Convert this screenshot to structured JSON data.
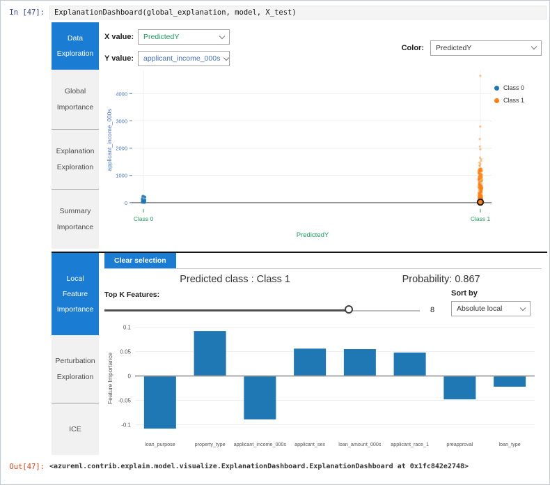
{
  "colors": {
    "accent_blue": "#1b7cd4",
    "axis_blue": "#4472c4",
    "axis_green": "#1f9d5b",
    "class0": "#1f77b4",
    "class1": "#ff7f0e",
    "bar_blue": "#1f77b4"
  },
  "notebook": {
    "in_prompt": "In [47]:",
    "in_code": "ExplanationDashboard(global_explanation, model, X_test)",
    "out_prompt": "Out[47]:",
    "out_text": "<azureml.contrib.explain.model.visualize.ExplanationDashboard.ExplanationDashboard at 0x1fc842e2748>"
  },
  "upper": {
    "tabs": [
      {
        "label": "Data Exploration",
        "active": true
      },
      {
        "label": "Global Importance",
        "active": false
      },
      {
        "label": "Explanation Exploration",
        "active": false
      },
      {
        "label": "Summary Importance",
        "active": false
      }
    ],
    "controls": {
      "x_label": "X value:",
      "x_value": "PredictedY",
      "y_label": "Y value:",
      "y_value": "applicant_income_000s",
      "color_label": "Color:",
      "color_value": "PredictedY"
    }
  },
  "lower": {
    "tabs": [
      {
        "label": "Local Feature Importance",
        "active": true
      },
      {
        "label": "Perturbation Exploration",
        "active": false
      },
      {
        "label": "ICE",
        "active": false
      }
    ],
    "clear_button": "Clear selection",
    "predicted_class": "Predicted class : Class 1",
    "probability": "Probability: 0.867",
    "topk_label": "Top K Features:",
    "topk_value": "8",
    "topk_percent": 78,
    "sortby_label": "Sort by",
    "sortby_value": "Absolute local"
  },
  "chart_data": [
    {
      "type": "scatter",
      "title": "",
      "xlabel": "PredictedY",
      "ylabel": "applicant_income_000s",
      "x_categories": [
        "Class 0",
        "Class 1"
      ],
      "yticks": [
        0,
        1000,
        2000,
        3000,
        4000
      ],
      "ylim": [
        -260,
        4850
      ],
      "grid": true,
      "legend_position": "top-right",
      "series": [
        {
          "name": "Class 0",
          "color": "#1f77b4",
          "dense": {
            "count": 45,
            "min": 0,
            "max": 250,
            "skew": 2.2
          },
          "outliers": []
        },
        {
          "name": "Class 1",
          "color": "#ff7f0e",
          "dense": {
            "count": 250,
            "min": 0,
            "max": 1300,
            "skew": 2.4
          },
          "outliers": [
            1330,
            1370,
            1420,
            1470,
            1530,
            1590,
            1650,
            1960,
            2060,
            2330,
            2790,
            4650
          ]
        }
      ],
      "selected_point": {
        "category": "Class 1",
        "y": 20
      }
    },
    {
      "type": "bar",
      "title": "",
      "xlabel": "",
      "ylabel": "Feature Importance",
      "categories": [
        "loan_purpose",
        "property_type",
        "applicant_income_000s",
        "applicant_sex",
        "loan_amount_000s",
        "applicant_race_1",
        "preapproval",
        "loan_type"
      ],
      "values": [
        -0.108,
        0.092,
        -0.089,
        0.056,
        0.055,
        0.048,
        -0.048,
        -0.022
      ],
      "yticks": [
        0.1,
        0.05,
        0,
        -0.05,
        -0.1
      ],
      "ylim": [
        -0.115,
        0.105
      ],
      "grid": true,
      "bar_color": "#1f77b4"
    }
  ]
}
